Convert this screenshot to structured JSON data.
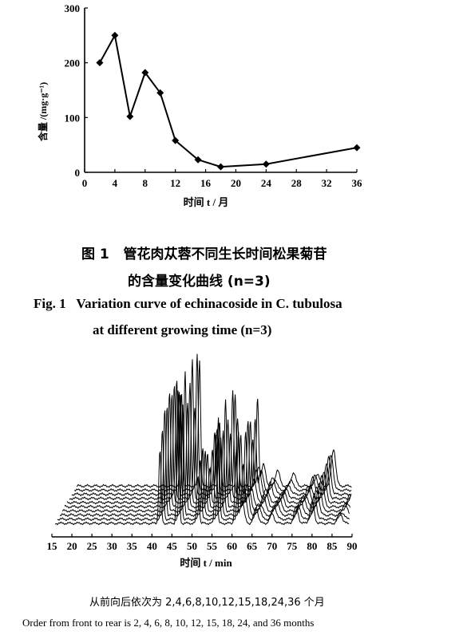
{
  "figure1": {
    "chart_data": {
      "type": "line",
      "x": [
        2,
        4,
        6,
        8,
        10,
        12,
        15,
        18,
        24,
        36
      ],
      "y": [
        200,
        250,
        102,
        182,
        145,
        58,
        23,
        10,
        15,
        45
      ],
      "xlim": [
        0,
        36
      ],
      "ylim": [
        0,
        300
      ],
      "xticks": [
        "0",
        "4",
        "8",
        "12",
        "16",
        "20",
        "24",
        "28",
        "32",
        "36"
      ],
      "yticks": [
        "0",
        "100",
        "200",
        "300"
      ],
      "xlabel": "时间 t / 月",
      "ylabel": "含量 /(mg·g⁻¹)",
      "marker": "diamond",
      "grid": false
    },
    "caption_zh_label": "图 1",
    "caption_zh_line1": "管花肉苁蓉不同生长时间松果菊苷",
    "caption_zh_line2": "的含量变化曲线 (n=3)",
    "caption_en_label": "Fig. 1",
    "caption_en_line1": "Variation curve of echinacoside in C. tubulosa",
    "caption_en_line2": "at different growing time (n=3)"
  },
  "figure2": {
    "xticks": [
      "15",
      "20",
      "25",
      "30",
      "35",
      "40",
      "45",
      "50",
      "55",
      "60",
      "65",
      "70",
      "75",
      "80",
      "85",
      "90"
    ],
    "xlim": [
      15,
      90
    ],
    "xlabel": "时间 t / min",
    "note_zh": "从前向后依次为 2,4,6,8,10,12,15,18,24,36 个月",
    "note_en": "Order from front to rear is 2, 4, 6, 8, 10, 12, 15, 18, 24, and 36 months",
    "series_months": [
      2,
      4,
      6,
      8,
      10,
      12,
      15,
      18,
      24,
      36
    ],
    "peaks": [
      {
        "t": 42,
        "h": 0.8
      },
      {
        "t": 46.5,
        "h": 1.0
      },
      {
        "t": 51.5,
        "h": 0.45
      },
      {
        "t": 56,
        "h": 0.72
      },
      {
        "t": 61,
        "h": 0.6
      },
      {
        "t": 62.5,
        "h": 0.2
      },
      {
        "t": 66,
        "h": 0.12
      },
      {
        "t": 70,
        "h": 0.1
      },
      {
        "t": 76,
        "h": 0.12
      },
      {
        "t": 80,
        "h": 0.25
      },
      {
        "t": 87,
        "h": 0.08
      }
    ]
  }
}
